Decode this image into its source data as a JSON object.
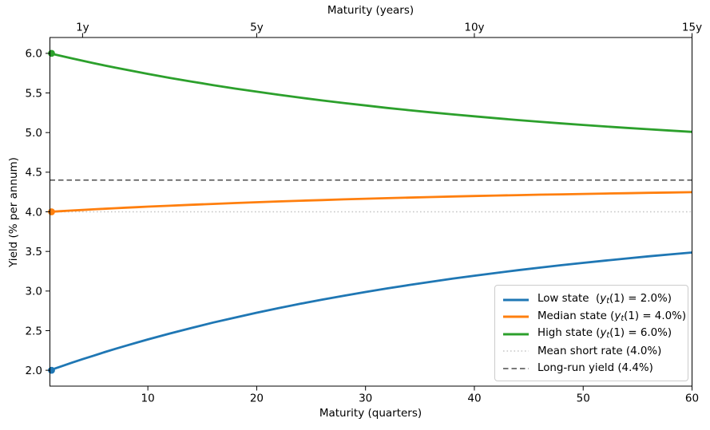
{
  "accent_colors": {
    "low_state_blue": "#1f77b4",
    "median_state_orange": "#ff7f0e",
    "high_state_green": "#2ca02c",
    "mean_short_rate_gray": "#c6c6c6",
    "long_run_yield_gray": "#4d4d4d"
  },
  "chart_data": {
    "type": "line",
    "top_axis": {
      "title": "Maturity (years)",
      "ticks": [
        {
          "x": 4,
          "label": "1y"
        },
        {
          "x": 20,
          "label": "5y"
        },
        {
          "x": 40,
          "label": "10y"
        },
        {
          "x": 60,
          "label": "15y"
        }
      ]
    },
    "xlabel": "Maturity (quarters)",
    "ylabel": "Yield (% per annum)",
    "xlim": [
      1,
      60
    ],
    "ylim": [
      1.8,
      6.2
    ],
    "x_ticks": [
      10,
      20,
      30,
      40,
      50,
      60
    ],
    "y_ticks": [
      "2.0",
      "2.5",
      "3.0",
      "3.5",
      "4.0",
      "4.5",
      "5.0",
      "5.5",
      "6.0"
    ],
    "grid": false,
    "x": [
      1,
      2,
      3,
      4,
      5,
      6,
      7,
      8,
      9,
      10,
      12,
      14,
      16,
      18,
      20,
      22,
      24,
      26,
      28,
      30,
      32,
      34,
      36,
      38,
      40,
      42,
      44,
      46,
      48,
      50,
      52,
      54,
      56,
      58,
      60
    ],
    "series": [
      {
        "name": "Low state (yt(1) = 2.0%)",
        "color": "#1f77b4",
        "dash": "solid",
        "line_width": 2.8,
        "start_marker": true,
        "values": [
          2.0,
          2.048,
          2.095,
          2.14,
          2.184,
          2.228,
          2.27,
          2.31,
          2.35,
          2.389,
          2.464,
          2.534,
          2.602,
          2.665,
          2.726,
          2.784,
          2.839,
          2.891,
          2.94,
          2.988,
          3.033,
          3.076,
          3.117,
          3.156,
          3.193,
          3.229,
          3.263,
          3.295,
          3.326,
          3.356,
          3.384,
          3.411,
          3.438,
          3.462,
          3.486
        ]
      },
      {
        "name": "Median state (yt(1) = 4.0%)",
        "color": "#ff7f0e",
        "dash": "solid",
        "line_width": 2.8,
        "start_marker": true,
        "values": [
          4.0,
          4.008,
          4.016,
          4.023,
          4.031,
          4.038,
          4.045,
          4.052,
          4.058,
          4.065,
          4.077,
          4.089,
          4.1,
          4.111,
          4.121,
          4.131,
          4.14,
          4.148,
          4.157,
          4.165,
          4.172,
          4.179,
          4.186,
          4.193,
          4.199,
          4.205,
          4.21,
          4.216,
          4.221,
          4.226,
          4.231,
          4.235,
          4.24,
          4.244,
          4.248
        ]
      },
      {
        "name": "High state (yt(1) = 6.0%)",
        "color": "#2ca02c",
        "dash": "solid",
        "line_width": 2.8,
        "start_marker": true,
        "values": [
          6.0,
          5.968,
          5.937,
          5.907,
          5.877,
          5.848,
          5.82,
          5.793,
          5.767,
          5.741,
          5.691,
          5.644,
          5.599,
          5.556,
          5.516,
          5.478,
          5.441,
          5.406,
          5.373,
          5.342,
          5.311,
          5.283,
          5.256,
          5.229,
          5.205,
          5.181,
          5.158,
          5.137,
          5.116,
          5.096,
          5.077,
          5.059,
          5.042,
          5.025,
          5.009
        ]
      }
    ],
    "reference_lines": [
      {
        "name": "Mean short rate (4.0%)",
        "value": 4.0,
        "color": "#c6c6c6",
        "dash": "dotted",
        "line_width": 1.6
      },
      {
        "name": "Long-run yield (4.4%)",
        "value": 4.4,
        "color": "#4d4d4d",
        "dash": "dashed",
        "line_width": 1.5
      }
    ],
    "legend": {
      "position": "lower right",
      "items": [
        {
          "color": "#1f77b4",
          "dash": "solid",
          "width": 3,
          "segments": [
            {
              "t": "Low state  ("
            },
            {
              "t": "y",
              "style": "var"
            },
            {
              "t": "t",
              "style": "sub"
            },
            {
              "t": "(1) = 2.0%)"
            }
          ]
        },
        {
          "color": "#ff7f0e",
          "dash": "solid",
          "width": 3,
          "segments": [
            {
              "t": "Median state ("
            },
            {
              "t": "y",
              "style": "var"
            },
            {
              "t": "t",
              "style": "sub"
            },
            {
              "t": "(1) = 4.0%)"
            }
          ]
        },
        {
          "color": "#2ca02c",
          "dash": "solid",
          "width": 3,
          "segments": [
            {
              "t": "High state ("
            },
            {
              "t": "y",
              "style": "var"
            },
            {
              "t": "t",
              "style": "sub"
            },
            {
              "t": "(1) = 6.0%)"
            }
          ]
        },
        {
          "color": "#c6c6c6",
          "dash": "dotted",
          "width": 1.6,
          "segments": [
            {
              "t": "Mean short rate (4.0%)"
            }
          ]
        },
        {
          "color": "#4d4d4d",
          "dash": "dashed",
          "width": 1.5,
          "segments": [
            {
              "t": "Long-run yield (4.4%)"
            }
          ]
        }
      ]
    }
  }
}
